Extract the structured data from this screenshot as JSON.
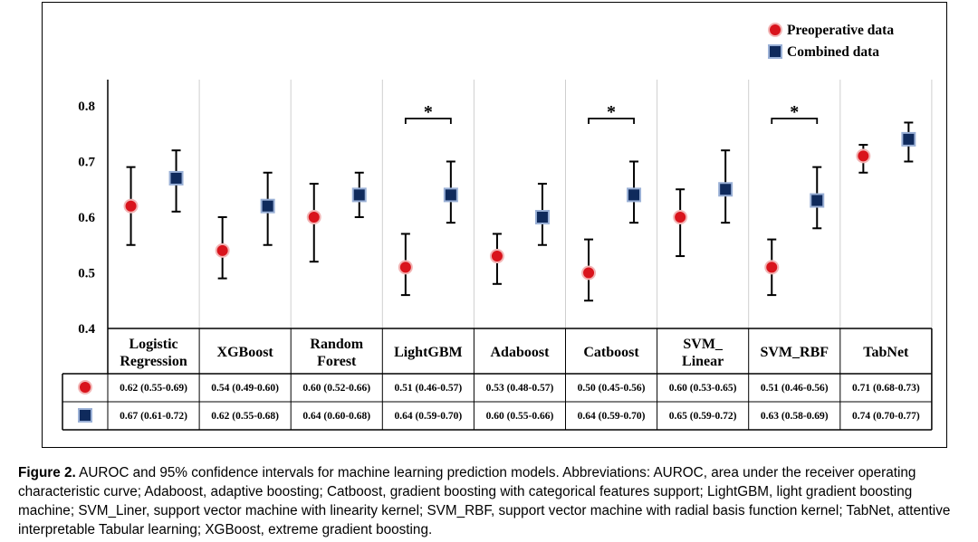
{
  "chart_data": {
    "type": "scatter",
    "categories": [
      {
        "line1": "Logistic",
        "line2": "Regression"
      },
      {
        "line1": "XGBoost",
        "line2": ""
      },
      {
        "line1": "Random",
        "line2": "Forest"
      },
      {
        "line1": "LightGBM",
        "line2": ""
      },
      {
        "line1": "Adaboost",
        "line2": ""
      },
      {
        "line1": "Catboost",
        "line2": ""
      },
      {
        "line1": "SVM_",
        "line2": "Linear"
      },
      {
        "line1": "SVM_RBF",
        "line2": ""
      },
      {
        "line1": "TabNet",
        "line2": ""
      }
    ],
    "series": [
      {
        "name": "Preoperative data",
        "marker": "circle",
        "color": "#d9141c",
        "values": [
          0.62,
          0.54,
          0.6,
          0.51,
          0.53,
          0.5,
          0.6,
          0.51,
          0.71
        ],
        "ci_low": [
          0.55,
          0.49,
          0.52,
          0.46,
          0.48,
          0.45,
          0.53,
          0.46,
          0.68
        ],
        "ci_high": [
          0.69,
          0.6,
          0.66,
          0.57,
          0.57,
          0.56,
          0.65,
          0.56,
          0.73
        ],
        "table_row": [
          "0.62 (0.55-0.69)",
          "0.54 (0.49-0.60)",
          "0.60 (0.52-0.66)",
          "0.51 (0.46-0.57)",
          "0.53 (0.48-0.57)",
          "0.50 (0.45-0.56)",
          "0.60 (0.53-0.65)",
          "0.51 (0.46-0.56)",
          "0.71 (0.68-0.73)"
        ]
      },
      {
        "name": "Combined data",
        "marker": "square",
        "color": "#0f2a5c",
        "values": [
          0.67,
          0.62,
          0.64,
          0.64,
          0.6,
          0.64,
          0.65,
          0.63,
          0.74
        ],
        "ci_low": [
          0.61,
          0.55,
          0.6,
          0.59,
          0.55,
          0.59,
          0.59,
          0.58,
          0.7
        ],
        "ci_high": [
          0.72,
          0.68,
          0.68,
          0.7,
          0.66,
          0.7,
          0.72,
          0.69,
          0.77
        ],
        "table_row": [
          "0.67 (0.61-0.72)",
          "0.62 (0.55-0.68)",
          "0.64 (0.60-0.68)",
          "0.64 (0.59-0.70)",
          "0.60 (0.55-0.66)",
          "0.64 (0.59-0.70)",
          "0.65 (0.59-0.72)",
          "0.63 (0.58-0.69)",
          "0.74 (0.70-0.77)"
        ]
      }
    ],
    "yticks": [
      "0.4",
      "0.5",
      "0.6",
      "0.7",
      "0.8"
    ],
    "ylim": [
      0.4,
      0.85
    ],
    "significance": {
      "label": "*",
      "category_indices": [
        3,
        5,
        7
      ]
    },
    "legend_position": "top-right",
    "grid": "vertical separators between categories"
  },
  "caption": {
    "label": "Figure 2.",
    "text": " AUROC and 95% confidence intervals for machine learning prediction models. Abbreviations: AUROC, area under the receiver operating characteristic curve; Adaboost, adaptive boosting; Catboost, gradient boosting with categorical features support; LightGBM, light gradient boosting machine; SVM_Liner, support vector machine with linearity kernel; SVM_RBF, support vector machine with radial basis function kernel; TabNet, attentive interpretable Tabular learning; XGBoost, extreme gradient boosting."
  }
}
